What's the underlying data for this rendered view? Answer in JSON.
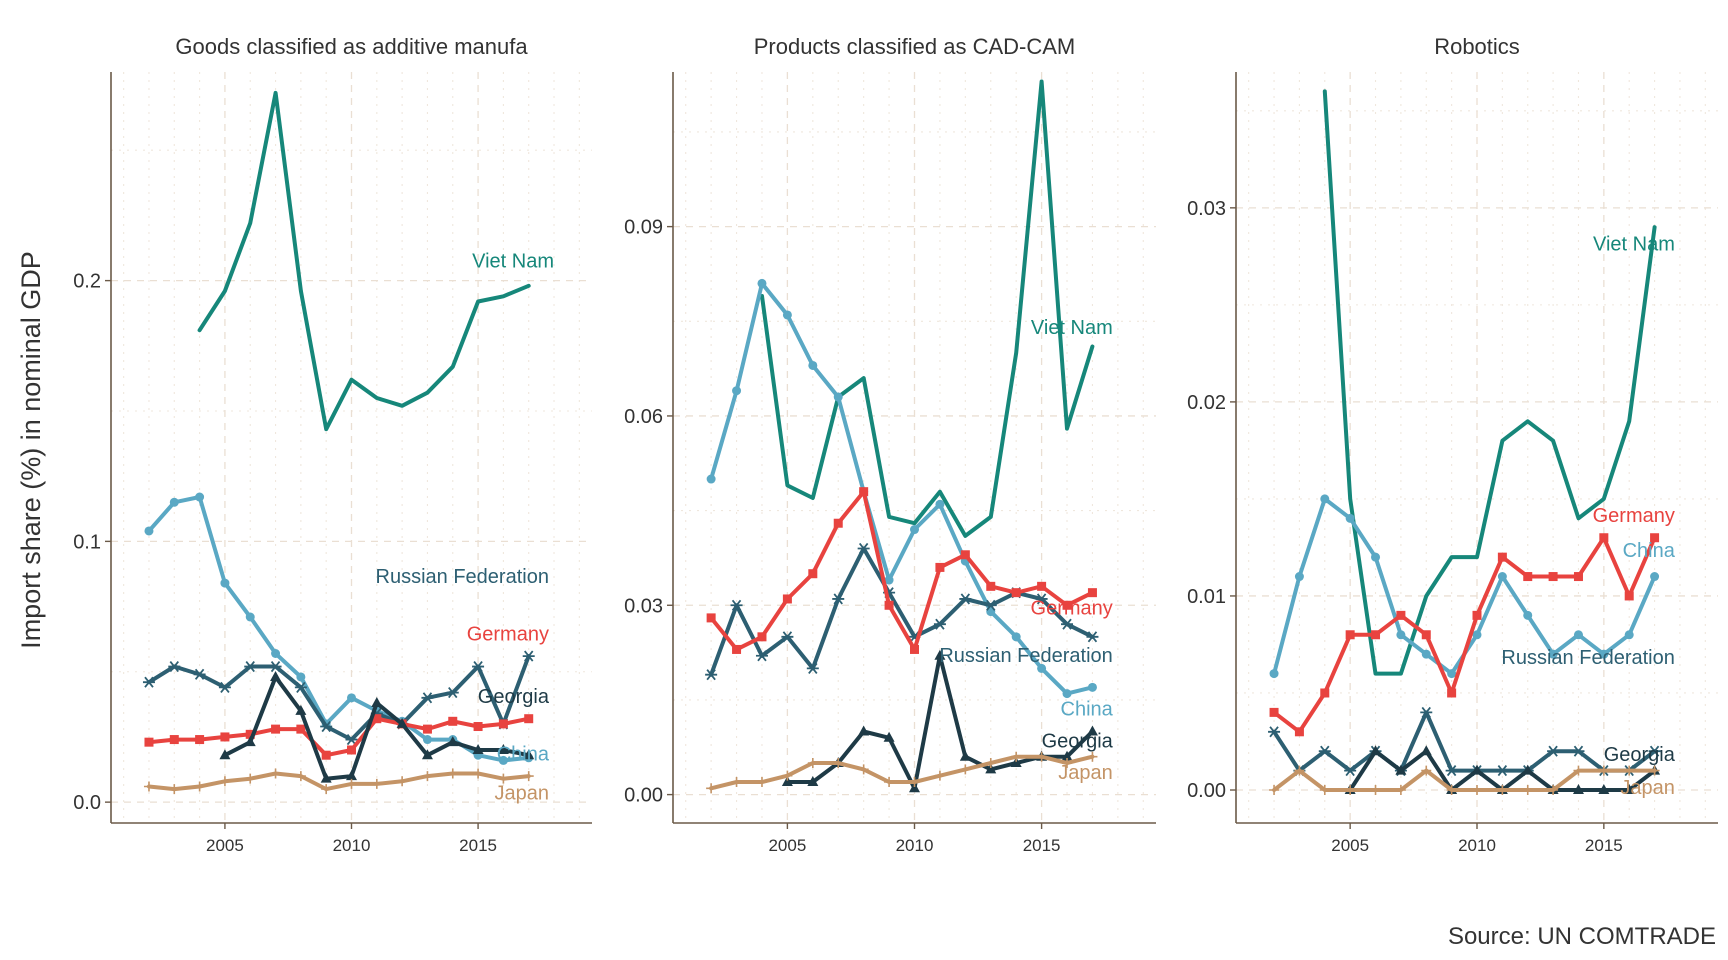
{
  "ylabel": "Import share (%) in nominal GDP",
  "caption": "Source: UN COMTRADE",
  "colors": {
    "Viet Nam": "#16877a",
    "China": "#5aa8c4",
    "Russian Federation": "#2d5f72",
    "Germany": "#e8433f",
    "Georgia": "#1e3a46",
    "Japan": "#c49466"
  },
  "chart_data": [
    {
      "type": "line",
      "title": "Goods classified as additive manufa",
      "xlabel": "",
      "ylabel": "Import share (%) in nominal GDP",
      "xlim": [
        2000.5,
        2019.5
      ],
      "ylim": [
        -0.008,
        0.28
      ],
      "xticks": [
        2005,
        2010,
        2015
      ],
      "yticks": [
        0.0,
        0.1,
        0.2
      ],
      "ytick_labels": [
        "0.0",
        "0.1",
        "0.2"
      ],
      "series": [
        {
          "name": "Viet Nam",
          "marker": "none",
          "x": [
            2004,
            2005,
            2006,
            2007,
            2008,
            2009,
            2010,
            2011,
            2012,
            2013,
            2014,
            2015,
            2016,
            2017
          ],
          "values": [
            0.181,
            0.196,
            0.222,
            0.272,
            0.196,
            0.143,
            0.162,
            0.155,
            0.152,
            0.157,
            0.167,
            0.192,
            0.194,
            0.198
          ]
        },
        {
          "name": "China",
          "marker": "circle",
          "x": [
            2002,
            2003,
            2004,
            2005,
            2006,
            2007,
            2008,
            2009,
            2010,
            2011,
            2012,
            2013,
            2014,
            2015,
            2016,
            2017
          ],
          "values": [
            0.104,
            0.115,
            0.117,
            0.084,
            0.071,
            0.057,
            0.048,
            0.03,
            0.04,
            0.035,
            0.031,
            0.024,
            0.024,
            0.018,
            0.016,
            0.017
          ]
        },
        {
          "name": "Russian Federation",
          "marker": "star",
          "x": [
            2002,
            2003,
            2004,
            2005,
            2006,
            2007,
            2008,
            2009,
            2010,
            2011,
            2012,
            2013,
            2014,
            2015,
            2016,
            2017
          ],
          "values": [
            0.046,
            0.052,
            0.049,
            0.044,
            0.052,
            0.052,
            0.044,
            0.029,
            0.024,
            0.034,
            0.03,
            0.04,
            0.042,
            0.052,
            0.03,
            0.056
          ]
        },
        {
          "name": "Germany",
          "marker": "square",
          "x": [
            2002,
            2003,
            2004,
            2005,
            2006,
            2007,
            2008,
            2009,
            2010,
            2011,
            2012,
            2013,
            2014,
            2015,
            2016,
            2017
          ],
          "values": [
            0.023,
            0.024,
            0.024,
            0.025,
            0.026,
            0.028,
            0.028,
            0.018,
            0.02,
            0.032,
            0.03,
            0.028,
            0.031,
            0.029,
            0.03,
            0.032
          ]
        },
        {
          "name": "Georgia",
          "marker": "triangle",
          "x": [
            2005,
            2006,
            2007,
            2008,
            2009,
            2010,
            2011,
            2012,
            2013,
            2014,
            2015,
            2016,
            2017
          ],
          "values": [
            0.018,
            0.023,
            0.048,
            0.035,
            0.009,
            0.01,
            0.038,
            0.03,
            0.018,
            0.023,
            0.02,
            0.02,
            0.018
          ]
        },
        {
          "name": "Japan",
          "marker": "plus",
          "x": [
            2002,
            2003,
            2004,
            2005,
            2006,
            2007,
            2008,
            2009,
            2010,
            2011,
            2012,
            2013,
            2014,
            2015,
            2016,
            2017
          ],
          "values": [
            0.006,
            0.005,
            0.006,
            0.008,
            0.009,
            0.011,
            0.01,
            0.005,
            0.007,
            0.007,
            0.008,
            0.01,
            0.011,
            0.011,
            0.009,
            0.01
          ]
        }
      ],
      "labels": [
        {
          "series": "Viet Nam",
          "text": "Viet Nam",
          "x": 2018.0,
          "y": 0.205
        },
        {
          "series": "Russian Federation",
          "text": "Russian Federation",
          "x": 2017.8,
          "y": 0.084
        },
        {
          "series": "Germany",
          "text": "Germany",
          "x": 2017.8,
          "y": 0.062
        },
        {
          "series": "Georgia",
          "text": "Georgia",
          "x": 2017.8,
          "y": 0.038
        },
        {
          "series": "China",
          "text": "China",
          "x": 2017.8,
          "y": 0.016
        },
        {
          "series": "Japan",
          "text": "Japan",
          "x": 2017.8,
          "y": 0.001
        }
      ]
    },
    {
      "type": "line",
      "title": "Products classified as CAD-CAM",
      "xlabel": "",
      "ylabel": "",
      "xlim": [
        2000.5,
        2019.5
      ],
      "ylim": [
        -0.0045,
        0.1145
      ],
      "xticks": [
        2005,
        2010,
        2015
      ],
      "yticks": [
        0.0,
        0.03,
        0.06,
        0.09
      ],
      "ytick_labels": [
        "0.00",
        "0.03",
        "0.06",
        "0.09"
      ],
      "series": [
        {
          "name": "Viet Nam",
          "marker": "none",
          "x": [
            2004,
            2005,
            2006,
            2007,
            2008,
            2009,
            2010,
            2011,
            2012,
            2013,
            2014,
            2015,
            2016,
            2017
          ],
          "values": [
            0.079,
            0.049,
            0.047,
            0.063,
            0.066,
            0.044,
            0.043,
            0.048,
            0.041,
            0.044,
            0.07,
            0.113,
            0.058,
            0.071
          ]
        },
        {
          "name": "China",
          "marker": "circle",
          "x": [
            2002,
            2003,
            2004,
            2005,
            2006,
            2007,
            2008,
            2009,
            2010,
            2011,
            2012,
            2013,
            2014,
            2015,
            2016,
            2017
          ],
          "values": [
            0.05,
            0.064,
            0.081,
            0.076,
            0.068,
            0.063,
            0.048,
            0.034,
            0.042,
            0.046,
            0.037,
            0.029,
            0.025,
            0.02,
            0.016,
            0.017
          ]
        },
        {
          "name": "Russian Federation",
          "marker": "star",
          "x": [
            2002,
            2003,
            2004,
            2005,
            2006,
            2007,
            2008,
            2009,
            2010,
            2011,
            2012,
            2013,
            2014,
            2015,
            2016,
            2017
          ],
          "values": [
            0.019,
            0.03,
            0.022,
            0.025,
            0.02,
            0.031,
            0.039,
            0.032,
            0.025,
            0.027,
            0.031,
            0.03,
            0.032,
            0.031,
            0.027,
            0.025
          ]
        },
        {
          "name": "Germany",
          "marker": "square",
          "x": [
            2002,
            2003,
            2004,
            2005,
            2006,
            2007,
            2008,
            2009,
            2010,
            2011,
            2012,
            2013,
            2014,
            2015,
            2016,
            2017
          ],
          "values": [
            0.028,
            0.023,
            0.025,
            0.031,
            0.035,
            0.043,
            0.048,
            0.03,
            0.023,
            0.036,
            0.038,
            0.033,
            0.032,
            0.033,
            0.03,
            0.032
          ]
        },
        {
          "name": "Georgia",
          "marker": "triangle",
          "x": [
            2005,
            2006,
            2007,
            2008,
            2009,
            2010,
            2011,
            2012,
            2013,
            2014,
            2015,
            2016,
            2017
          ],
          "values": [
            0.002,
            0.002,
            0.005,
            0.01,
            0.009,
            0.001,
            0.022,
            0.006,
            0.004,
            0.005,
            0.006,
            0.006,
            0.01
          ]
        },
        {
          "name": "Japan",
          "marker": "plus",
          "x": [
            2002,
            2003,
            2004,
            2005,
            2006,
            2007,
            2008,
            2009,
            2010,
            2011,
            2012,
            2013,
            2014,
            2015,
            2016,
            2017
          ],
          "values": [
            0.001,
            0.002,
            0.002,
            0.003,
            0.005,
            0.005,
            0.004,
            0.002,
            0.002,
            0.003,
            0.004,
            0.005,
            0.006,
            0.006,
            0.005,
            0.006
          ]
        }
      ],
      "labels": [
        {
          "series": "Viet Nam",
          "text": "Viet Nam",
          "x": 2017.8,
          "y": 0.073
        },
        {
          "series": "Germany",
          "text": "Germany",
          "x": 2017.8,
          "y": 0.0285
        },
        {
          "series": "Russian Federation",
          "text": "Russian Federation",
          "x": 2017.8,
          "y": 0.021
        },
        {
          "series": "China",
          "text": "China",
          "x": 2017.8,
          "y": 0.0125
        },
        {
          "series": "Georgia",
          "text": "Georgia",
          "x": 2017.8,
          "y": 0.0075
        },
        {
          "series": "Japan",
          "text": "Japan",
          "x": 2017.8,
          "y": 0.0025
        }
      ]
    },
    {
      "type": "line",
      "title": "Robotics",
      "xlabel": "",
      "ylabel": "",
      "xlim": [
        2000.5,
        2019.5
      ],
      "ylim": [
        -0.0017,
        0.037
      ],
      "xticks": [
        2005,
        2010,
        2015
      ],
      "yticks": [
        0.0,
        0.01,
        0.02,
        0.03
      ],
      "ytick_labels": [
        "0.00",
        "0.01",
        "0.02",
        "0.03"
      ],
      "series": [
        {
          "name": "Viet Nam",
          "marker": "none",
          "x": [
            2004,
            2005,
            2006,
            2007,
            2008,
            2009,
            2010,
            2011,
            2012,
            2013,
            2014,
            2015,
            2016,
            2017
          ],
          "values": [
            0.036,
            0.015,
            0.006,
            0.006,
            0.01,
            0.012,
            0.012,
            0.018,
            0.019,
            0.018,
            0.014,
            0.015,
            0.019,
            0.029
          ]
        },
        {
          "name": "China",
          "marker": "circle",
          "x": [
            2002,
            2003,
            2004,
            2005,
            2006,
            2007,
            2008,
            2009,
            2010,
            2011,
            2012,
            2013,
            2014,
            2015,
            2016,
            2017
          ],
          "values": [
            0.006,
            0.011,
            0.015,
            0.014,
            0.012,
            0.008,
            0.007,
            0.006,
            0.008,
            0.011,
            0.009,
            0.007,
            0.008,
            0.007,
            0.008,
            0.011
          ]
        },
        {
          "name": "Russian Federation",
          "marker": "star",
          "x": [
            2002,
            2003,
            2004,
            2005,
            2006,
            2007,
            2008,
            2009,
            2010,
            2011,
            2012,
            2013,
            2014,
            2015,
            2016,
            2017
          ],
          "values": [
            0.003,
            0.001,
            0.002,
            0.001,
            0.002,
            0.001,
            0.004,
            0.001,
            0.001,
            0.001,
            0.001,
            0.002,
            0.002,
            0.001,
            0.001,
            0.002
          ]
        },
        {
          "name": "Germany",
          "marker": "square",
          "x": [
            2002,
            2003,
            2004,
            2005,
            2006,
            2007,
            2008,
            2009,
            2010,
            2011,
            2012,
            2013,
            2014,
            2015,
            2016,
            2017
          ],
          "values": [
            0.004,
            0.003,
            0.005,
            0.008,
            0.008,
            0.009,
            0.008,
            0.005,
            0.009,
            0.012,
            0.011,
            0.011,
            0.011,
            0.013,
            0.01,
            0.013
          ]
        },
        {
          "name": "Georgia",
          "marker": "triangle",
          "x": [
            2005,
            2006,
            2007,
            2008,
            2009,
            2010,
            2011,
            2012,
            2013,
            2014,
            2015,
            2016,
            2017
          ],
          "values": [
            0.0,
            0.002,
            0.001,
            0.002,
            0.0,
            0.001,
            0.0,
            0.001,
            0.0,
            0.0,
            0.0,
            0.0,
            0.001
          ]
        },
        {
          "name": "Japan",
          "marker": "plus",
          "x": [
            2002,
            2003,
            2004,
            2005,
            2006,
            2007,
            2008,
            2009,
            2010,
            2011,
            2012,
            2013,
            2014,
            2015,
            2016,
            2017
          ],
          "values": [
            0.0,
            0.001,
            0.0,
            0.0,
            0.0,
            0.0,
            0.001,
            0.0,
            0.0,
            0.0,
            0.0,
            0.0,
            0.001,
            0.001,
            0.001,
            0.001
          ]
        }
      ],
      "labels": [
        {
          "series": "Viet Nam",
          "text": "Viet Nam",
          "x": 2017.8,
          "y": 0.0278
        },
        {
          "series": "Germany",
          "text": "Germany",
          "x": 2017.8,
          "y": 0.0138
        },
        {
          "series": "China",
          "text": "China",
          "x": 2017.8,
          "y": 0.012
        },
        {
          "series": "Russian Federation",
          "text": "Russian Federation",
          "x": 2017.8,
          "y": 0.0065
        },
        {
          "series": "Georgia",
          "text": "Georgia",
          "x": 2017.8,
          "y": 0.0015
        },
        {
          "series": "Japan",
          "text": "Japan",
          "x": 2017.8,
          "y": -0.0002
        }
      ]
    }
  ]
}
